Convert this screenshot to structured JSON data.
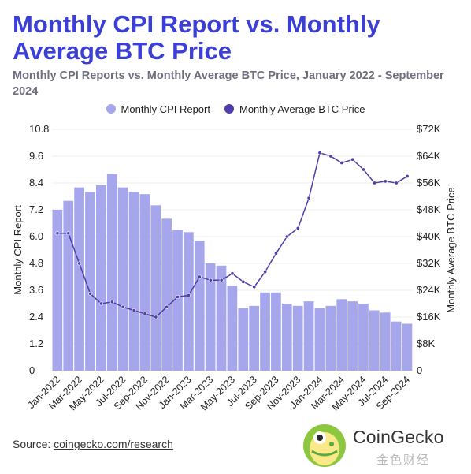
{
  "title": "Monthly CPI Report vs. Monthly Average BTC Price",
  "subtitle": "Monthly CPI Reports vs. Monthly Average BTC Price, January 2022 - September 2024",
  "source": {
    "prefix": "Source: ",
    "link": "coingecko.com/research"
  },
  "brand": {
    "name": "CoinGecko",
    "watermark": "金色财经"
  },
  "colors": {
    "bar": "#a6a6ec",
    "line": "#4e3fa8",
    "title": "#3b3fd6",
    "grid": "#ececec"
  },
  "chart_data": {
    "type": "bar",
    "x": [
      "Jan-2022",
      "Feb-2022",
      "Mar-2022",
      "Apr-2022",
      "May-2022",
      "Jun-2022",
      "Jul-2022",
      "Aug-2022",
      "Sep-2022",
      "Oct-2022",
      "Nov-2022",
      "Dec-2022",
      "Jan-2023",
      "Feb-2023",
      "Mar-2023",
      "Apr-2023",
      "May-2023",
      "Jun-2023",
      "Jul-2023",
      "Aug-2023",
      "Sep-2023",
      "Oct-2023",
      "Nov-2023",
      "Dec-2023",
      "Jan-2024",
      "Feb-2024",
      "Mar-2024",
      "Apr-2024",
      "May-2024",
      "Jun-2024",
      "Jul-2024",
      "Aug-2024",
      "Sep-2024"
    ],
    "tick_labels": [
      "Jan-2022",
      "Mar-2022",
      "May-2022",
      "Jul-2022",
      "Sep-2022",
      "Nov-2022",
      "Jan-2023",
      "Mar-2023",
      "May-2023",
      "Jul-2023",
      "Sep-2023",
      "Nov-2023",
      "Jan-2024",
      "Mar-2024",
      "May-2024",
      "Jul-2024",
      "Sep-2024"
    ],
    "series": [
      {
        "name": "Monthly CPI Report",
        "type": "bar",
        "axis": "left",
        "values": [
          7.2,
          7.6,
          8.2,
          8.0,
          8.3,
          8.8,
          8.2,
          8.0,
          7.9,
          7.4,
          6.8,
          6.3,
          6.2,
          5.816,
          4.8,
          4.7,
          3.8,
          2.8,
          2.9,
          3.5,
          3.5,
          3.0,
          2.9,
          3.1,
          2.8,
          2.9,
          3.2,
          3.1,
          3.0,
          2.7,
          2.6,
          2.2,
          2.1
        ]
      },
      {
        "name": "Monthly Average BTC Price",
        "type": "line",
        "axis": "right",
        "values": [
          41000,
          41000,
          32000,
          23000,
          20000,
          20500,
          19000,
          18000,
          17000,
          16000,
          19000,
          22000,
          22500,
          28000,
          27000,
          27000,
          29000,
          26500,
          25000,
          29500,
          35000,
          40000,
          42500,
          51500,
          65000,
          64000,
          62000,
          63000,
          60000,
          56000,
          56500,
          56000,
          58000
        ]
      }
    ],
    "y_left": {
      "label": "Monthly CPI Report",
      "ticks": [
        "0",
        "1.2",
        "2.4",
        "3.6",
        "4.8",
        "6.0",
        "7.2",
        "8.4",
        "9.6",
        "10.8"
      ],
      "range": [
        0,
        10.8
      ]
    },
    "y_right": {
      "label": "Monthly Average BTC Price",
      "ticks": [
        "0",
        "$8K",
        "$16K",
        "$24K",
        "$32K",
        "$40K",
        "$48K",
        "$56K",
        "$64K",
        "$72K"
      ],
      "range": [
        0,
        72000
      ]
    },
    "grid": "horizontal",
    "legend": "top"
  }
}
